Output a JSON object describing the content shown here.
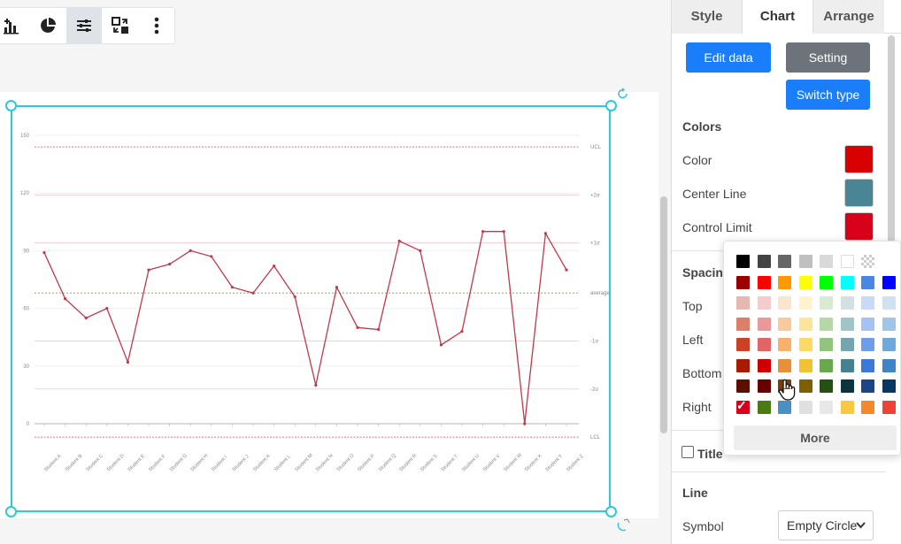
{
  "panel": {
    "tabs": [
      {
        "label": "Style"
      },
      {
        "label": "Chart"
      },
      {
        "label": "Arrange"
      }
    ],
    "buttons": {
      "edit_data": "Edit data",
      "setting": "Setting",
      "switch_type": "Switch type"
    },
    "colors_section": {
      "title": "Colors",
      "rows": [
        {
          "label": "Color",
          "value": "#d90000"
        },
        {
          "label": "Center Line",
          "value": "#4a8596"
        },
        {
          "label": "Control Limit",
          "value": "#d9001b"
        }
      ]
    },
    "spacing_section": {
      "title": "Spacing",
      "rows": [
        {
          "label": "Top"
        },
        {
          "label": "Left"
        },
        {
          "label": "Bottom"
        },
        {
          "label": "Right"
        }
      ]
    },
    "title_option": {
      "label": "Title",
      "checked": false
    },
    "line_section": {
      "title": "Line",
      "symbol_label": "Symbol",
      "symbol_value": "Empty Circle"
    }
  },
  "color_picker": {
    "more_label": "More",
    "selected": "#d9001b",
    "colors": [
      "#000000",
      "#434343",
      "#666666",
      "#c0c0c0",
      "#d9d9d9",
      "#ffffff",
      "transparent",
      "",
      "#990000",
      "#ff0000",
      "#ff9900",
      "#ffff00",
      "#00ff00",
      "#00ffff",
      "#4a86e8",
      "#0000ff",
      "#e6b8af",
      "#f4cccc",
      "#fce5cd",
      "#fff2cc",
      "#d9ead3",
      "#d0e0e3",
      "#c9daf8",
      "#cfe2f3",
      "#dd7e6b",
      "#ea9999",
      "#f9cb9c",
      "#ffe599",
      "#b6d7a8",
      "#a2c4c9",
      "#a4c2f4",
      "#9fc5e8",
      "#cc4125",
      "#e06666",
      "#f6b26b",
      "#ffd966",
      "#93c47d",
      "#76a5af",
      "#6d9eeb",
      "#6fa8dc",
      "#a61c00",
      "#cc0000",
      "#e69138",
      "#f1c232",
      "#6aa84f",
      "#45818e",
      "#3c78d8",
      "#3d85c6",
      "#5b0f00",
      "#660000",
      "#783f04",
      "#7f6000",
      "#274e13",
      "#0c343d",
      "#1c4587",
      "#073763",
      "#d9001b",
      "#4b7a12",
      "#4a8fc4",
      "#e0e0e0",
      "#e8e8e8",
      "#f9c841",
      "#f5892a",
      "#ef4136"
    ]
  },
  "toolbar": {
    "buttons": [
      {
        "icon": "add-chart-icon"
      },
      {
        "icon": "pie-chart-icon"
      },
      {
        "icon": "sliders-icon",
        "active": true
      },
      {
        "icon": "swap-icon"
      },
      {
        "icon": "more-vertical-icon"
      }
    ]
  },
  "chart_data": {
    "type": "line",
    "title": "",
    "ylim": [
      0,
      150
    ],
    "yticks": [
      0,
      30,
      60,
      90,
      120,
      150
    ],
    "categories": [
      "Student A",
      "Student B",
      "Student C",
      "Student D",
      "Student E",
      "Student F",
      "Student G",
      "Student H",
      "Student I",
      "Student J",
      "Student K",
      "Student L",
      "Student M",
      "Student N",
      "Student O",
      "Student P",
      "Student Q",
      "Student R",
      "Student S",
      "Student T",
      "Student U",
      "Student V",
      "Student W",
      "Student X",
      "Student Y",
      "Student Z"
    ],
    "values": [
      89,
      65,
      55,
      60,
      32,
      80,
      83,
      90,
      87,
      71,
      68,
      82,
      66,
      20,
      71,
      50,
      49,
      95,
      90,
      41,
      48,
      100,
      100,
      0,
      99,
      80
    ],
    "control_lines": [
      {
        "label": "UCL",
        "value": 144,
        "style": "dashed"
      },
      {
        "label": "+2σ",
        "value": 119,
        "style": "solid"
      },
      {
        "label": "+1σ",
        "value": 94,
        "style": "solid"
      },
      {
        "label": "average",
        "value": 68,
        "style": "dashed"
      },
      {
        "label": "-1σ",
        "value": 43,
        "style": "solid"
      },
      {
        "label": "-2σ",
        "value": 18,
        "style": "solid"
      },
      {
        "label": "LCL",
        "value": -7,
        "style": "dashed"
      }
    ],
    "series_color": "#c0394b"
  }
}
